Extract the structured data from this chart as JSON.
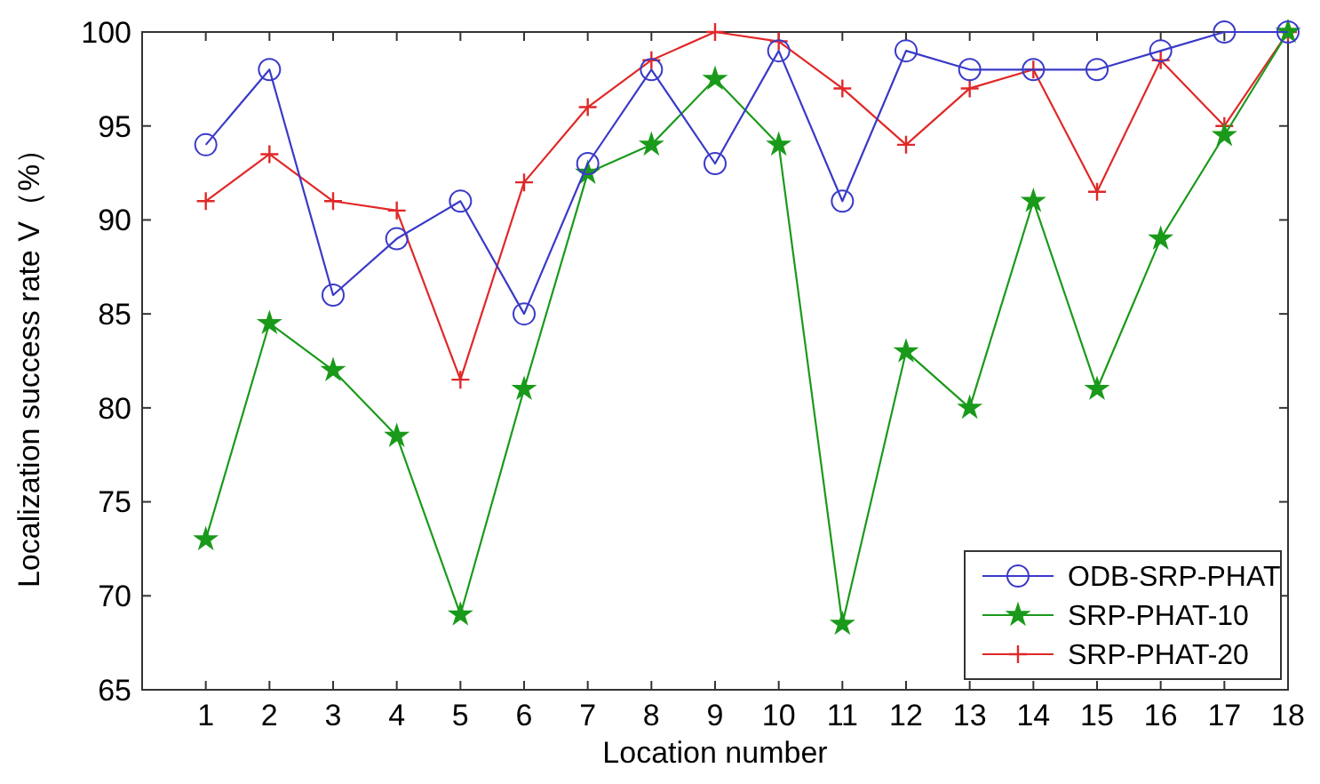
{
  "chart_data": {
    "type": "line",
    "xlabel": "Location number",
    "ylabel": "Localization success rate V（%）",
    "x": [
      1,
      2,
      3,
      4,
      5,
      6,
      7,
      8,
      9,
      10,
      11,
      12,
      13,
      14,
      15,
      16,
      17,
      18
    ],
    "xlim": [
      0,
      18
    ],
    "xticks": [
      1,
      2,
      3,
      4,
      5,
      6,
      7,
      8,
      9,
      10,
      11,
      12,
      13,
      14,
      15,
      16,
      17,
      18
    ],
    "ylim": [
      65,
      100
    ],
    "yticks": [
      65,
      70,
      75,
      80,
      85,
      90,
      95,
      100
    ],
    "grid": false,
    "legend": "bottom right",
    "line_style": "solid",
    "series": [
      {
        "name": "ODB-SRP-PHAT",
        "color": "#3a3ac8",
        "marker": "circle",
        "values": [
          94,
          98,
          86,
          89,
          91,
          85,
          93,
          98,
          93,
          99,
          91,
          99,
          98,
          98,
          98,
          99,
          100,
          100
        ]
      },
      {
        "name": "SRP-PHAT-10",
        "color": "#1a9a1a",
        "marker": "star",
        "values": [
          73,
          84.5,
          82,
          78.5,
          69,
          81,
          92.5,
          94,
          97.5,
          94,
          68.5,
          83,
          80,
          91,
          81,
          89,
          94.5,
          100
        ]
      },
      {
        "name": "SRP-PHAT-20",
        "color": "#e02828",
        "marker": "cross",
        "values": [
          91,
          93.5,
          91,
          90.5,
          81.5,
          92,
          96,
          98.5,
          100,
          99.5,
          97,
          94,
          97,
          98,
          91.5,
          98.5,
          95,
          100
        ]
      }
    ]
  }
}
